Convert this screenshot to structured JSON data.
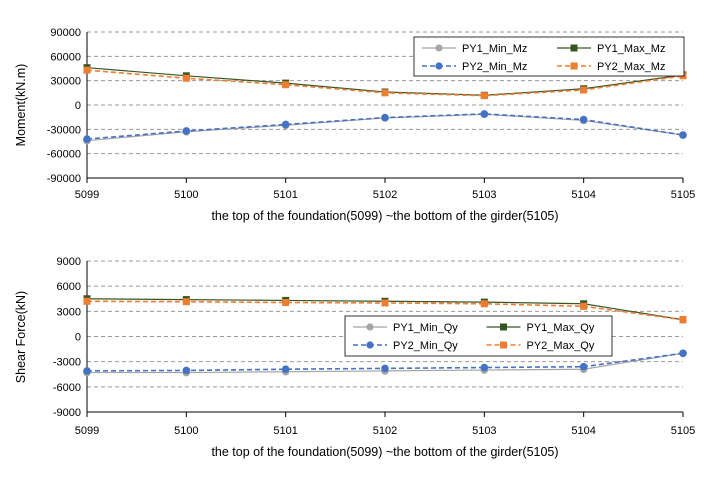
{
  "chart_data": [
    {
      "type": "line",
      "categories": [
        "5099",
        "5100",
        "5101",
        "5102",
        "5103",
        "5104",
        "5105"
      ],
      "xlabel": "the top of the foundation(5099) ~the bottom of the girder(5105)",
      "ylabel": "Moment(kN.m)",
      "ylim": [
        -90000,
        90000
      ],
      "yticks": [
        90000,
        60000,
        30000,
        0,
        -30000,
        -60000,
        -90000
      ],
      "grid": true,
      "legend_position": "top-right",
      "series": [
        {
          "name": "PY1_Min_Mz",
          "color": "#a5a5a5",
          "dash": false,
          "marker": "circle",
          "values": [
            -44000,
            -33000,
            -25000,
            -16000,
            -11500,
            -19000,
            -37000
          ]
        },
        {
          "name": "PY1_Max_Mz",
          "color": "#375623",
          "dash": false,
          "marker": "square",
          "values": [
            46000,
            36000,
            27000,
            16000,
            12000,
            20000,
            37000
          ]
        },
        {
          "name": "PY2_Min_Mz",
          "color": "#4472c4",
          "dash": true,
          "marker": "circle",
          "values": [
            -42000,
            -32000,
            -24000,
            -15500,
            -11000,
            -18000,
            -37000
          ]
        },
        {
          "name": "PY2_Max_Mz",
          "color": "#ed7d31",
          "dash": true,
          "marker": "square",
          "values": [
            43000,
            33000,
            25000,
            15000,
            11500,
            18500,
            36000
          ]
        }
      ]
    },
    {
      "type": "line",
      "categories": [
        "5099",
        "5100",
        "5101",
        "5102",
        "5103",
        "5104",
        "5105"
      ],
      "xlabel": "the top of the foundation(5099) ~the bottom of the girder(5105)",
      "ylabel": "Shear Force(kN)",
      "ylim": [
        -9000,
        9000
      ],
      "yticks": [
        9000,
        6000,
        3000,
        0,
        -3000,
        -6000,
        -9000
      ],
      "grid": true,
      "legend_position": "right",
      "series": [
        {
          "name": "PY1_Min_Qy",
          "color": "#a5a5a5",
          "dash": false,
          "marker": "circle",
          "values": [
            -4300,
            -4300,
            -4200,
            -4100,
            -4000,
            -3900,
            -2000
          ]
        },
        {
          "name": "PY1_Max_Qy",
          "color": "#375623",
          "dash": false,
          "marker": "square",
          "values": [
            4500,
            4400,
            4300,
            4200,
            4100,
            3900,
            2000
          ]
        },
        {
          "name": "PY2_Min_Qy",
          "color": "#4472c4",
          "dash": true,
          "marker": "circle",
          "values": [
            -4100,
            -4050,
            -3900,
            -3800,
            -3700,
            -3600,
            -2000
          ]
        },
        {
          "name": "PY2_Max_Qy",
          "color": "#ed7d31",
          "dash": true,
          "marker": "square",
          "values": [
            4200,
            4150,
            4050,
            4000,
            3900,
            3600,
            2000
          ]
        }
      ]
    }
  ]
}
